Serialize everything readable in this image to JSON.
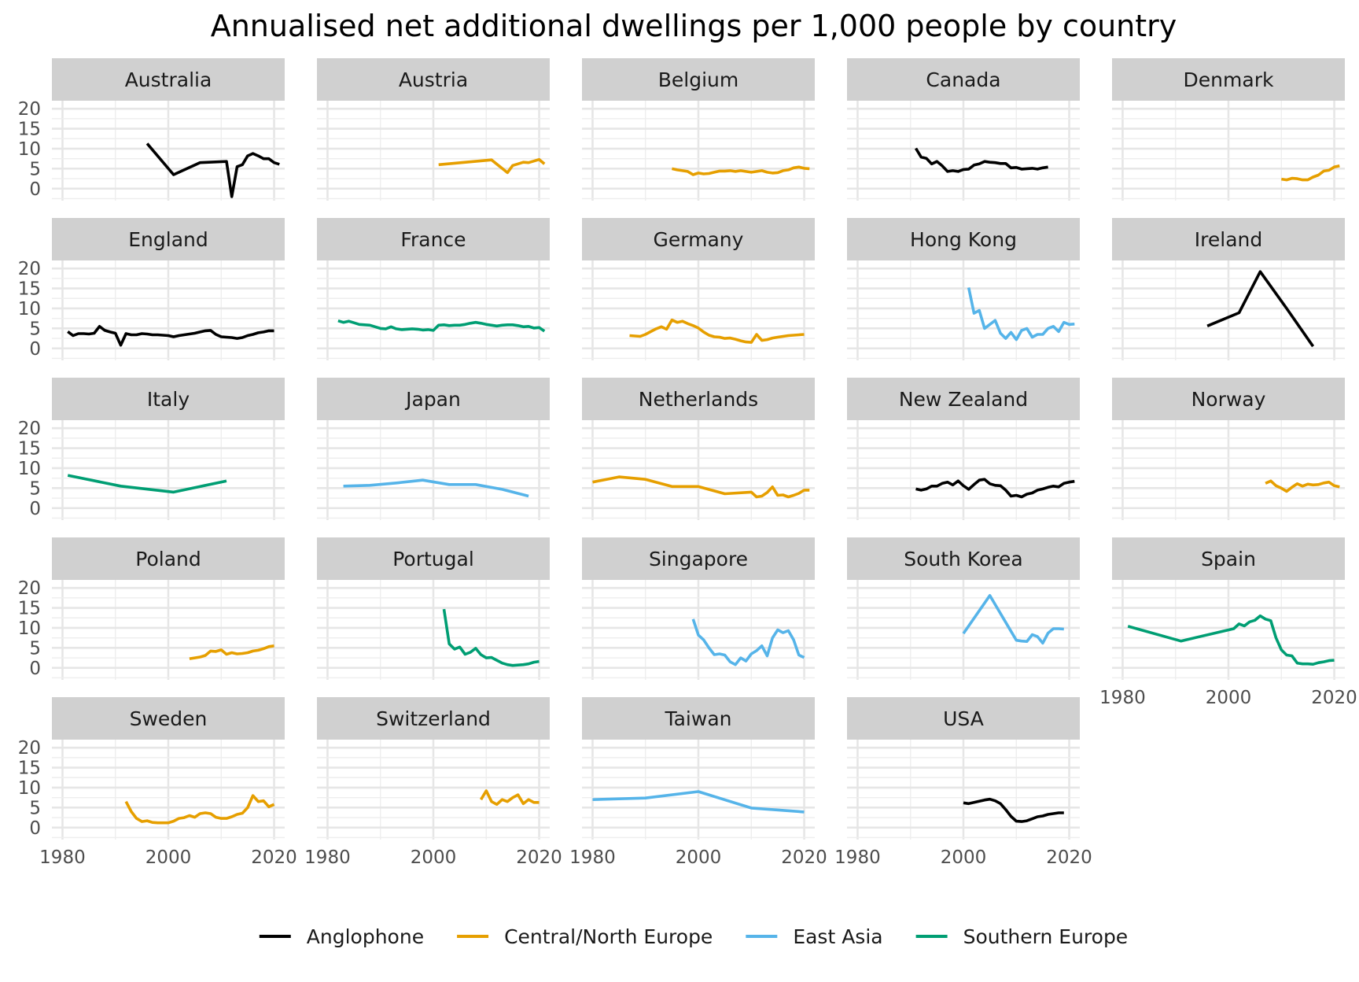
{
  "colors": {
    "Anglophone": "#000000",
    "Central/North Europe": "#E69F00",
    "East Asia": "#56B4E9",
    "Southern Europe": "#009E73"
  },
  "chart_data": {
    "type": "line",
    "title": "Annualised net additional dwellings per 1,000 people by country",
    "xlabel": "",
    "ylabel": "",
    "xlim": [
      1978,
      2022
    ],
    "ylim": [
      -3,
      22
    ],
    "x_ticks": [
      1980,
      2000,
      2020
    ],
    "y_ticks": [
      0,
      5,
      10,
      15,
      20
    ],
    "grid": true,
    "facet_columns": 5,
    "legend_position": "bottom",
    "legend": [
      "Anglophone",
      "Central/North Europe",
      "East Asia",
      "Southern Europe"
    ],
    "panels": [
      {
        "name": "Australia",
        "group": "Anglophone",
        "x": [
          1996,
          2001,
          2006,
          2011,
          2012,
          2013,
          2014,
          2015,
          2016,
          2017,
          2018,
          2019,
          2020,
          2021
        ],
        "y": [
          11.3,
          3.5,
          6.5,
          6.8,
          -2.0,
          5.5,
          6.0,
          8.2,
          8.8,
          8.2,
          7.5,
          7.5,
          6.5,
          6.1
        ]
      },
      {
        "name": "Austria",
        "group": "Central/North Europe",
        "x": [
          2001,
          2011,
          2014,
          2015,
          2016,
          2017,
          2018,
          2019,
          2020,
          2021
        ],
        "y": [
          6.0,
          7.2,
          4.0,
          5.8,
          6.2,
          6.6,
          6.5,
          6.9,
          7.3,
          6.2
        ]
      },
      {
        "name": "Belgium",
        "group": "Central/North Europe",
        "x": [
          1995,
          1996,
          1997,
          1998,
          1999,
          2000,
          2001,
          2002,
          2003,
          2004,
          2005,
          2006,
          2007,
          2008,
          2009,
          2010,
          2011,
          2012,
          2013,
          2014,
          2015,
          2016,
          2017,
          2018,
          2019,
          2020,
          2021
        ],
        "y": [
          5.0,
          4.7,
          4.5,
          4.3,
          3.5,
          3.9,
          3.7,
          3.8,
          4.1,
          4.4,
          4.4,
          4.5,
          4.3,
          4.5,
          4.3,
          4.1,
          4.3,
          4.5,
          4.1,
          3.9,
          4.0,
          4.5,
          4.7,
          5.2,
          5.4,
          5.1,
          5.0
        ]
      },
      {
        "name": "Canada",
        "group": "Anglophone",
        "x": [
          1991,
          1992,
          1993,
          1994,
          1995,
          1996,
          1997,
          1998,
          1999,
          2000,
          2001,
          2002,
          2003,
          2004,
          2005,
          2006,
          2007,
          2008,
          2009,
          2010,
          2011,
          2012,
          2013,
          2014,
          2015,
          2016
        ],
        "y": [
          10.1,
          7.9,
          7.6,
          6.2,
          6.8,
          5.7,
          4.3,
          4.5,
          4.3,
          4.8,
          4.9,
          5.9,
          6.2,
          6.8,
          6.6,
          6.5,
          6.3,
          6.3,
          5.2,
          5.3,
          4.9,
          5.0,
          5.1,
          4.9,
          5.2,
          5.4
        ]
      },
      {
        "name": "Denmark",
        "group": "Central/North Europe",
        "x": [
          2010,
          2011,
          2012,
          2013,
          2014,
          2015,
          2016,
          2017,
          2018,
          2019,
          2020,
          2021
        ],
        "y": [
          2.4,
          2.2,
          2.6,
          2.5,
          2.2,
          2.2,
          2.9,
          3.4,
          4.4,
          4.6,
          5.4,
          5.7
        ]
      },
      {
        "name": "England",
        "group": "Anglophone",
        "x": [
          1981,
          1982,
          1983,
          1984,
          1985,
          1986,
          1987,
          1988,
          1989,
          1990,
          1991,
          1992,
          1993,
          1994,
          1995,
          1996,
          1997,
          1998,
          1999,
          2000,
          2001,
          2002,
          2003,
          2004,
          2005,
          2006,
          2007,
          2008,
          2009,
          2010,
          2011,
          2012,
          2013,
          2014,
          2015,
          2016,
          2017,
          2018,
          2019,
          2020
        ],
        "y": [
          4.2,
          3.2,
          3.7,
          3.7,
          3.6,
          3.8,
          5.5,
          4.5,
          4.1,
          3.8,
          0.8,
          3.7,
          3.4,
          3.4,
          3.7,
          3.6,
          3.4,
          3.4,
          3.3,
          3.2,
          2.9,
          3.2,
          3.4,
          3.6,
          3.8,
          4.1,
          4.4,
          4.5,
          3.5,
          2.9,
          2.8,
          2.7,
          2.5,
          2.7,
          3.2,
          3.5,
          3.9,
          4.1,
          4.4,
          4.4
        ]
      },
      {
        "name": "France",
        "group": "Southern Europe",
        "x": [
          1982,
          1983,
          1984,
          1985,
          1986,
          1987,
          1988,
          1989,
          1990,
          1991,
          1992,
          1993,
          1994,
          1995,
          1996,
          1997,
          1998,
          1999,
          2000,
          2001,
          2002,
          2003,
          2004,
          2005,
          2006,
          2007,
          2008,
          2009,
          2010,
          2011,
          2012,
          2013,
          2014,
          2015,
          2016,
          2017,
          2018,
          2019,
          2020,
          2021
        ],
        "y": [
          6.9,
          6.5,
          6.8,
          6.4,
          6.0,
          5.9,
          5.8,
          5.4,
          5.0,
          4.9,
          5.4,
          4.9,
          4.7,
          4.8,
          4.9,
          4.8,
          4.6,
          4.7,
          4.5,
          5.8,
          5.9,
          5.7,
          5.8,
          5.8,
          6.0,
          6.3,
          6.5,
          6.3,
          6.0,
          5.8,
          5.6,
          5.8,
          5.9,
          5.9,
          5.7,
          5.4,
          5.5,
          5.1,
          5.2,
          4.3
        ]
      },
      {
        "name": "Germany",
        "group": "Central/North Europe",
        "x": [
          1987,
          1988,
          1989,
          1990,
          1991,
          1992,
          1993,
          1994,
          1995,
          1996,
          1997,
          1998,
          1999,
          2000,
          2001,
          2002,
          2003,
          2004,
          2005,
          2006,
          2007,
          2008,
          2009,
          2010,
          2011,
          2012,
          2013,
          2014,
          2015,
          2016,
          2017,
          2018,
          2019,
          2020
        ],
        "y": [
          3.2,
          3.1,
          3.0,
          3.5,
          4.2,
          4.9,
          5.4,
          4.8,
          7.1,
          6.5,
          6.8,
          6.2,
          5.7,
          5.1,
          4.1,
          3.3,
          2.9,
          2.8,
          2.5,
          2.6,
          2.3,
          1.9,
          1.6,
          1.5,
          3.5,
          2.0,
          2.2,
          2.6,
          2.8,
          3.0,
          3.2,
          3.3,
          3.4,
          3.5
        ]
      },
      {
        "name": "Hong Kong",
        "group": "East Asia",
        "x": [
          2001,
          2002,
          2003,
          2004,
          2005,
          2006,
          2007,
          2008,
          2009,
          2010,
          2011,
          2012,
          2013,
          2014,
          2015,
          2016,
          2017,
          2018,
          2019,
          2020,
          2021
        ],
        "y": [
          15.2,
          8.8,
          9.5,
          5.0,
          6.0,
          7.0,
          3.8,
          2.5,
          4.0,
          2.2,
          4.5,
          5.0,
          2.8,
          3.5,
          3.5,
          5.0,
          5.5,
          4.2,
          6.5,
          6.0,
          6.1
        ]
      },
      {
        "name": "Ireland",
        "group": "Anglophone",
        "x": [
          1996,
          2002,
          2006,
          2011,
          2016
        ],
        "y": [
          5.6,
          8.9,
          19.2,
          10.0,
          0.5
        ]
      },
      {
        "name": "Italy",
        "group": "Southern Europe",
        "x": [
          1981,
          1991,
          2001,
          2011
        ],
        "y": [
          8.2,
          5.5,
          4.0,
          6.8
        ]
      },
      {
        "name": "Japan",
        "group": "East Asia",
        "x": [
          1983,
          1988,
          1993,
          1998,
          2003,
          2008,
          2013,
          2018
        ],
        "y": [
          5.5,
          5.7,
          6.3,
          7.0,
          5.9,
          5.9,
          4.7,
          3.0
        ]
      },
      {
        "name": "Netherlands",
        "group": "Central/North Europe",
        "x": [
          1980,
          1985,
          1990,
          1995,
          2000,
          2005,
          2010,
          2011,
          2012,
          2013,
          2014,
          2015,
          2016,
          2017,
          2018,
          2019,
          2020,
          2021
        ],
        "y": [
          6.5,
          7.8,
          7.2,
          5.4,
          5.4,
          3.6,
          4.0,
          2.8,
          3.0,
          3.9,
          5.3,
          3.2,
          3.3,
          2.8,
          3.2,
          3.7,
          4.5,
          4.5
        ]
      },
      {
        "name": "New Zealand",
        "group": "Anglophone",
        "x": [
          1991,
          1992,
          1993,
          1994,
          1995,
          1996,
          1997,
          1998,
          1999,
          2000,
          2001,
          2002,
          2003,
          2004,
          2005,
          2006,
          2007,
          2008,
          2009,
          2010,
          2011,
          2012,
          2013,
          2014,
          2015,
          2016,
          2017,
          2018,
          2019,
          2020,
          2021
        ],
        "y": [
          4.8,
          4.5,
          4.8,
          5.5,
          5.5,
          6.2,
          6.5,
          5.8,
          6.8,
          5.6,
          4.7,
          5.9,
          7.0,
          7.2,
          6.1,
          5.7,
          5.6,
          4.5,
          3.0,
          3.2,
          2.8,
          3.5,
          3.8,
          4.5,
          4.8,
          5.2,
          5.5,
          5.3,
          6.2,
          6.5,
          6.7
        ]
      },
      {
        "name": "Norway",
        "group": "Central/North Europe",
        "x": [
          2007,
          2008,
          2009,
          2010,
          2011,
          2012,
          2013,
          2014,
          2015,
          2016,
          2017,
          2018,
          2019,
          2020,
          2021
        ],
        "y": [
          6.2,
          6.8,
          5.6,
          5.0,
          4.2,
          5.2,
          6.1,
          5.5,
          6.0,
          5.8,
          5.9,
          6.3,
          6.5,
          5.6,
          5.3
        ]
      },
      {
        "name": "Poland",
        "group": "Central/North Europe",
        "x": [
          2004,
          2005,
          2006,
          2007,
          2008,
          2009,
          2010,
          2011,
          2012,
          2013,
          2014,
          2015,
          2016,
          2017,
          2018,
          2019,
          2020
        ],
        "y": [
          2.3,
          2.5,
          2.7,
          3.1,
          4.2,
          4.1,
          4.5,
          3.4,
          3.8,
          3.5,
          3.6,
          3.8,
          4.2,
          4.4,
          4.8,
          5.3,
          5.5
        ]
      },
      {
        "name": "Portugal",
        "group": "Southern Europe",
        "x": [
          2002,
          2003,
          2004,
          2005,
          2006,
          2007,
          2008,
          2009,
          2010,
          2011,
          2012,
          2013,
          2014,
          2015,
          2016,
          2017,
          2018,
          2019,
          2020
        ],
        "y": [
          14.7,
          6.0,
          4.7,
          5.2,
          3.4,
          3.9,
          4.9,
          3.3,
          2.5,
          2.6,
          1.9,
          1.2,
          0.8,
          0.6,
          0.7,
          0.8,
          1.0,
          1.4,
          1.6
        ]
      },
      {
        "name": "Singapore",
        "group": "East Asia",
        "x": [
          1999,
          2000,
          2001,
          2002,
          2003,
          2004,
          2005,
          2006,
          2007,
          2008,
          2009,
          2010,
          2011,
          2012,
          2013,
          2014,
          2015,
          2016,
          2017,
          2018,
          2019,
          2020
        ],
        "y": [
          12.2,
          8.2,
          7.0,
          5.0,
          3.3,
          3.5,
          3.2,
          1.5,
          0.8,
          2.5,
          1.7,
          3.5,
          4.3,
          5.5,
          3.0,
          7.5,
          9.5,
          8.8,
          9.3,
          7.0,
          3.2,
          2.6
        ]
      },
      {
        "name": "South Korea",
        "group": "East Asia",
        "x": [
          2000,
          2005,
          2010,
          2011,
          2012,
          2013,
          2014,
          2015,
          2016,
          2017,
          2018,
          2019
        ],
        "y": [
          8.6,
          18.1,
          6.9,
          6.7,
          6.6,
          8.3,
          7.8,
          6.2,
          8.7,
          9.8,
          9.8,
          9.7
        ]
      },
      {
        "name": "Spain",
        "group": "Southern Europe",
        "x": [
          1981,
          1991,
          2001,
          2002,
          2003,
          2004,
          2005,
          2006,
          2007,
          2008,
          2009,
          2010,
          2011,
          2012,
          2013,
          2014,
          2015,
          2016,
          2017,
          2018,
          2019,
          2020
        ],
        "y": [
          10.4,
          6.7,
          9.8,
          11.0,
          10.5,
          11.5,
          11.9,
          13.0,
          12.2,
          11.8,
          7.5,
          4.5,
          3.2,
          3.0,
          1.2,
          1.0,
          1.0,
          0.9,
          1.3,
          1.5,
          1.8,
          1.9
        ]
      },
      {
        "name": "Sweden",
        "group": "Central/North Europe",
        "x": [
          1992,
          1993,
          1994,
          1995,
          1996,
          1997,
          1998,
          1999,
          2000,
          2001,
          2002,
          2003,
          2004,
          2005,
          2006,
          2007,
          2008,
          2009,
          2010,
          2011,
          2012,
          2013,
          2014,
          2015,
          2016,
          2017,
          2018,
          2019,
          2020
        ],
        "y": [
          6.5,
          4.0,
          2.3,
          1.5,
          1.7,
          1.3,
          1.2,
          1.2,
          1.2,
          1.6,
          2.3,
          2.5,
          3.0,
          2.6,
          3.5,
          3.7,
          3.5,
          2.6,
          2.3,
          2.3,
          2.7,
          3.3,
          3.6,
          5.0,
          8.0,
          6.5,
          6.7,
          5.2,
          5.8
        ]
      },
      {
        "name": "Switzerland",
        "group": "Central/North Europe",
        "x": [
          2009,
          2010,
          2011,
          2012,
          2013,
          2014,
          2015,
          2016,
          2017,
          2018,
          2019,
          2020
        ],
        "y": [
          7.0,
          9.2,
          6.5,
          5.8,
          7.0,
          6.5,
          7.5,
          8.2,
          6.0,
          7.0,
          6.3,
          6.3
        ]
      },
      {
        "name": "Taiwan",
        "group": "East Asia",
        "x": [
          1980,
          1990,
          2000,
          2010,
          2020
        ],
        "y": [
          7.0,
          7.4,
          9.0,
          4.9,
          3.9
        ]
      },
      {
        "name": "USA",
        "group": "Anglophone",
        "x": [
          2000,
          2001,
          2002,
          2003,
          2004,
          2005,
          2006,
          2007,
          2008,
          2009,
          2010,
          2011,
          2012,
          2013,
          2014,
          2015,
          2016,
          2017,
          2018,
          2019
        ],
        "y": [
          6.2,
          6.0,
          6.3,
          6.6,
          6.9,
          7.1,
          6.7,
          6.0,
          4.5,
          2.8,
          1.6,
          1.5,
          1.7,
          2.2,
          2.7,
          2.9,
          3.3,
          3.5,
          3.7,
          3.7
        ]
      }
    ]
  }
}
